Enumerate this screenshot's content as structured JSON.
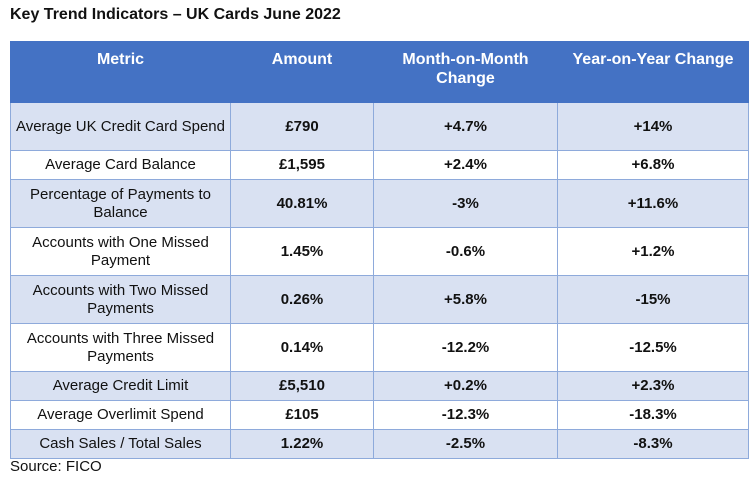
{
  "chart_data": {
    "type": "table",
    "title": "Key Trend Indicators – UK Cards June 2022",
    "columns": [
      "Metric",
      "Amount",
      "Month-on-Month Change",
      "Year-on-Year Change"
    ],
    "rows": [
      [
        "Average UK Credit Card Spend",
        "£790",
        "+4.7%",
        "+14%"
      ],
      [
        "Average Card Balance",
        "£1,595",
        "+2.4%",
        "+6.8%"
      ],
      [
        "Percentage of Payments to Balance",
        "40.81%",
        "-3%",
        "+11.6%"
      ],
      [
        "Accounts with One Missed Payment",
        "1.45%",
        "-0.6%",
        "+1.2%"
      ],
      [
        "Accounts with Two Missed Payments",
        "0.26%",
        "+5.8%",
        "-15%"
      ],
      [
        "Accounts with Three Missed Payments",
        "0.14%",
        "-12.2%",
        "-12.5%"
      ],
      [
        "Average Credit Limit",
        "£5,510",
        "+0.2%",
        "+2.3%"
      ],
      [
        "Average Overlimit Spend",
        "£105",
        "-12.3%",
        "-18.3%"
      ],
      [
        "Cash Sales / Total Sales",
        "1.22%",
        "-2.5%",
        "-8.3%"
      ]
    ],
    "source": "Source: FICO",
    "colors": {
      "header": "#4472c4",
      "band": "#d9e1f2",
      "border": "#8eaadb"
    }
  }
}
